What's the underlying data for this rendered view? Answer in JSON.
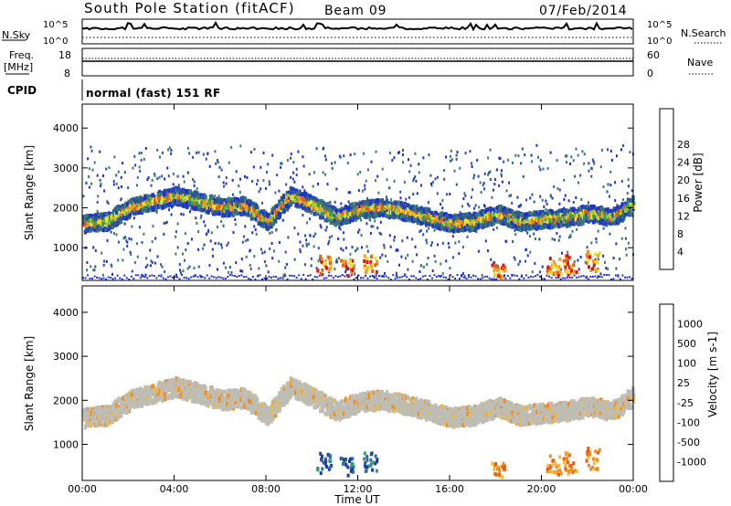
{
  "header": {
    "title": "South Pole Station (fitACF)",
    "beam": "Beam 09",
    "date": "07/Feb/2014"
  },
  "top_panels": {
    "nsky_label": "N.Sky",
    "nsearch_label": "N.Search",
    "nsky_ticks": [
      "10^5",
      "10^0"
    ],
    "nsearch_ticks": [
      "10^5",
      "10^0"
    ],
    "freq_label_1": "Freq.",
    "freq_label_2": "[MHz]",
    "freq_ticks": [
      "18",
      "8"
    ],
    "nave_label": "Nave",
    "nave_ticks": [
      "60",
      "0"
    ],
    "cpid_label": "CPID",
    "cpid_value": "normal (fast) 151 RF"
  },
  "colors": {
    "power_scale": [
      "#1f2fd0",
      "#2a52a0",
      "#3a7a70",
      "#3aa04a",
      "#9ccc3a",
      "#f0e030",
      "#f0a020",
      "#e86018",
      "#d81818"
    ],
    "velocity_scale": [
      "#1c3ca8",
      "#2f6fa0",
      "#3a9a70",
      "#4cc040",
      "#bdbdb5",
      "#f0b838",
      "#f08c20",
      "#f05818",
      "#e01818"
    ]
  },
  "chart_data": [
    {
      "type": "heatmap",
      "name": "power",
      "xlabel": "",
      "ylabel": "Slant Range [km]",
      "x_ticks": [
        "00:00",
        "04:00",
        "08:00",
        "12:00",
        "16:00",
        "20:00",
        "00:00"
      ],
      "x_range_hours": [
        0,
        24
      ],
      "y_ticks": [
        1000,
        2000,
        3000,
        4000
      ],
      "y_range_km": [
        180,
        4600
      ],
      "colorbar": {
        "label": "Power [dB]",
        "ticks": [
          4,
          8,
          12,
          16,
          20,
          24,
          28
        ],
        "range": [
          0,
          32
        ]
      },
      "echo_band": {
        "hours": [
          0,
          1,
          2,
          3,
          4,
          5,
          6,
          7,
          8,
          9,
          10,
          11,
          12,
          13,
          14,
          15,
          16,
          17,
          18,
          19,
          20,
          21,
          22,
          23,
          24
        ],
        "range_km": [
          1650,
          1700,
          2050,
          2200,
          2350,
          2200,
          2050,
          2100,
          1700,
          2350,
          2100,
          1800,
          2000,
          2050,
          1950,
          1800,
          1650,
          1700,
          1900,
          1700,
          1750,
          1800,
          1900,
          1800,
          2150
        ]
      }
    },
    {
      "type": "heatmap",
      "name": "velocity",
      "xlabel": "Time UT",
      "ylabel": "Slant Range [km]",
      "x_ticks": [
        "00:00",
        "04:00",
        "08:00",
        "12:00",
        "16:00",
        "20:00",
        "00:00"
      ],
      "x_range_hours": [
        0,
        24
      ],
      "y_ticks": [
        1000,
        2000,
        3000,
        4000
      ],
      "y_range_km": [
        180,
        4600
      ],
      "colorbar": {
        "label": "Velocity [m s-1]",
        "ticks": [
          "1000",
          "500",
          "100",
          "25",
          "-25",
          "-100",
          "-500",
          "-1000"
        ]
      }
    }
  ]
}
